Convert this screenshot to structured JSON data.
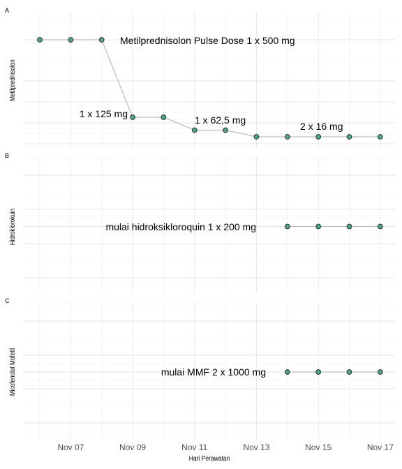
{
  "chart_data": [
    {
      "type": "line",
      "tag": "A",
      "ylabel": "Metilprednisolon",
      "x": [
        "2020-11-06",
        "2020-11-07",
        "2020-11-08",
        "2020-11-09",
        "2020-11-10",
        "2020-11-11",
        "2020-11-12",
        "2020-11-13",
        "2020-11-14",
        "2020-11-15",
        "2020-11-16",
        "2020-11-17"
      ],
      "values": [
        500,
        500,
        500,
        125,
        125,
        62.5,
        62.5,
        32,
        32,
        32,
        32,
        32
      ],
      "annotations": [
        {
          "text": "Metilprednisolon Pulse Dose 1 x 500 mg",
          "x": "2020-11-12",
          "y": 500
        },
        {
          "text": "1 x 125 mg",
          "x": "2020-11-08",
          "y": 125
        },
        {
          "text": "1 x 62,5 mg",
          "x": "2020-11-12",
          "y": 90
        },
        {
          "text": "2 x 16 mg",
          "x": "2020-11-15",
          "y": 62
        }
      ]
    },
    {
      "type": "line",
      "tag": "B",
      "ylabel": "Hidroklorokuin",
      "x": [
        "2020-11-14",
        "2020-11-15",
        "2020-11-16",
        "2020-11-17"
      ],
      "values": [
        200,
        200,
        200,
        200
      ],
      "annotations": [
        {
          "text": "mulai hidroksikloroquin 1 x 200 mg",
          "x": "2020-11-11",
          "y": 200
        }
      ]
    },
    {
      "type": "line",
      "tag": "C",
      "ylabel": "Micofenolat Mofetil",
      "x": [
        "2020-11-14",
        "2020-11-15",
        "2020-11-16",
        "2020-11-17"
      ],
      "values": [
        2000,
        2000,
        2000,
        2000
      ],
      "annotations": [
        {
          "text": "mulai MMF 2 x 1000 mg",
          "x": "2020-11-12",
          "y": 2000
        }
      ]
    }
  ],
  "x_axis": {
    "label": "Hari Perawatan",
    "ticks": [
      "Nov 07",
      "Nov 09",
      "Nov 11",
      "Nov 13",
      "Nov 15",
      "Nov 17"
    ],
    "range": [
      "2020-11-05",
      "2020-11-17"
    ]
  },
  "colors": {
    "point_fill": "#4ea783",
    "line": "#bdbdbd",
    "grid": "#e6e6e6"
  }
}
